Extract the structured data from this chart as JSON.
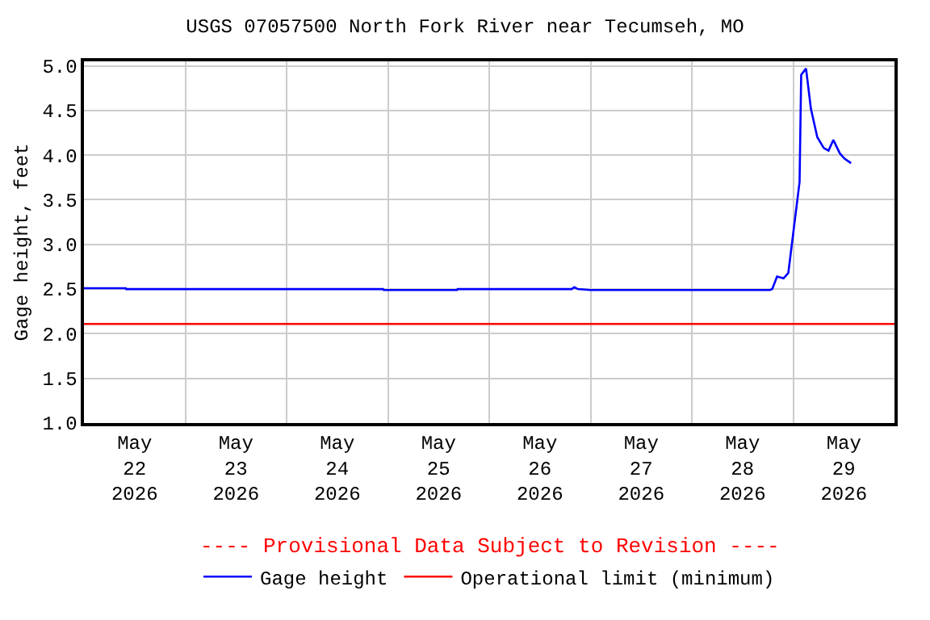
{
  "chart_data": {
    "type": "line",
    "title": "USGS 07057500 North Fork River near Tecumseh, MO",
    "ylabel": "Gage height, feet",
    "annotations": [
      "---- Provisional Data Subject to Revision ----"
    ],
    "x": [
      "2026-05-22T00:00",
      "2026-05-22T09:54",
      "2026-05-22T10:00",
      "2026-05-24T22:52",
      "2026-05-24T23:00",
      "2026-05-25T16:23",
      "2026-05-25T16:30",
      "2026-05-26T19:30",
      "2026-05-26T20:10",
      "2026-05-26T21:00",
      "2026-05-27T00:00",
      "2026-05-28T18:30",
      "2026-05-28T19:03",
      "2026-05-28T20:11",
      "2026-05-28T21:43",
      "2026-05-28T22:51",
      "2026-05-29T01:31",
      "2026-05-29T01:54",
      "2026-05-29T03:03",
      "2026-05-29T04:12",
      "2026-05-29T05:43",
      "2026-05-29T07:15",
      "2026-05-29T08:23",
      "2026-05-29T09:31",
      "2026-05-29T11:03",
      "2026-05-29T12:11",
      "2026-05-29T13:43"
    ],
    "series": [
      {
        "name": "Gage height",
        "color": "#0000ff",
        "values": [
          2.51,
          2.51,
          2.5,
          2.5,
          2.49,
          2.49,
          2.5,
          2.5,
          2.52,
          2.5,
          2.49,
          2.49,
          2.5,
          2.64,
          2.62,
          2.68,
          3.7,
          4.9,
          4.97,
          4.52,
          4.2,
          4.08,
          4.05,
          4.17,
          4.02,
          3.96,
          3.91
        ]
      }
    ],
    "ref_lines": [
      {
        "axis": "y",
        "value": 2.11,
        "label": "Operational limit (minimum)",
        "color": "#ff0000"
      }
    ],
    "xlim": [
      "2026-05-22T00:00",
      "2026-05-30T00:00"
    ],
    "xticks": [
      {
        "value": "2026-05-22T12:00",
        "label": "May\n22\n2026"
      },
      {
        "value": "2026-05-23T12:00",
        "label": "May\n23\n2026"
      },
      {
        "value": "2026-05-24T12:00",
        "label": "May\n24\n2026"
      },
      {
        "value": "2026-05-25T12:00",
        "label": "May\n25\n2026"
      },
      {
        "value": "2026-05-26T12:00",
        "label": "May\n26\n2026"
      },
      {
        "value": "2026-05-27T12:00",
        "label": "May\n27\n2026"
      },
      {
        "value": "2026-05-28T12:00",
        "label": "May\n28\n2026"
      },
      {
        "value": "2026-05-29T12:00",
        "label": "May\n29\n2026"
      },
      {
        "value": "2026-05-23T00:00",
        "label": null
      },
      {
        "value": "2026-05-24T00:00",
        "label": null
      },
      {
        "value": "2026-05-25T00:00",
        "label": null
      },
      {
        "value": "2026-05-26T00:00",
        "label": null
      },
      {
        "value": "2026-05-27T00:00",
        "label": null
      },
      {
        "value": "2026-05-28T00:00",
        "label": null
      },
      {
        "value": "2026-05-29T00:00",
        "label": null
      }
    ],
    "ylim": [
      1.0,
      5.05
    ],
    "yticks": [
      {
        "value": 1.0,
        "label": "1.0"
      },
      {
        "value": 1.5,
        "label": "1.5"
      },
      {
        "value": 2.0,
        "label": "2.0"
      },
      {
        "value": 2.5,
        "label": "2.5"
      },
      {
        "value": 3.0,
        "label": "3.0"
      },
      {
        "value": 3.5,
        "label": "3.5"
      },
      {
        "value": 4.0,
        "label": "4.0"
      },
      {
        "value": 4.5,
        "label": "4.5"
      },
      {
        "value": 5.0,
        "label": "5.0"
      }
    ],
    "grid": true,
    "legend": "bottom",
    "marker": "none",
    "line_style": "solid"
  }
}
